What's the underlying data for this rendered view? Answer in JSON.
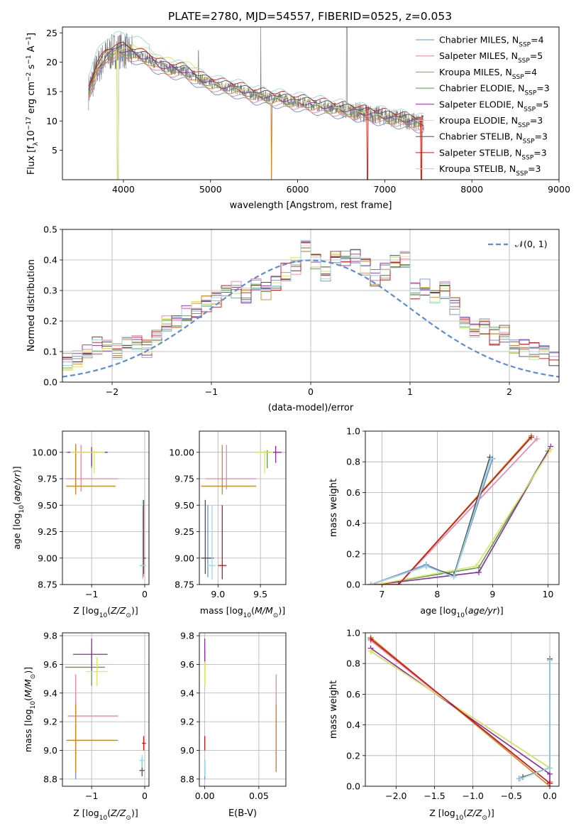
{
  "figure_title": "PLATE=2780, MJD=54557, FIBERID=0525, z=0.053",
  "colors": [
    "#6f8fd6",
    "#ee82a8",
    "#d2861c",
    "#5d9a4f",
    "#8b2aa6",
    "#dbe75c",
    "#4f4f4f",
    "#c41818",
    "#9ad8e6"
  ],
  "chart_data": [
    {
      "id": "spectrum",
      "type": "line",
      "title": "PLATE=2780, MJD=54557, FIBERID=0525, z=0.053",
      "xlabel": "wavelength [Angstrom, rest frame]",
      "ylabel": "Flux [f_λ 10^-17 erg cm^-2 s^-1 A^-1]",
      "xlim": [
        3300,
        9000
      ],
      "ylim": [
        0,
        26
      ],
      "xticks": [
        4000,
        5000,
        6000,
        7000,
        8000,
        9000
      ],
      "yticks": [
        5,
        10,
        15,
        20,
        25
      ],
      "grid": false,
      "legend_position": "upper right",
      "data_color": "#808080",
      "data_profile": {
        "x": [
          3600,
          3700,
          3800,
          3900,
          4000,
          4100,
          4200,
          4300,
          4400,
          4500,
          4700,
          4900,
          5100,
          5300,
          5500,
          5700,
          5900,
          6100,
          6300,
          6500,
          6700,
          6900,
          7100,
          7300,
          7450
        ],
        "y": [
          15,
          19,
          21,
          22,
          22,
          21.5,
          21,
          20.5,
          19.5,
          19,
          18.5,
          17,
          16,
          15.5,
          14.5,
          14,
          13.5,
          13,
          12.5,
          12,
          11.5,
          11,
          10.5,
          10,
          9.5
        ]
      },
      "series": [
        {
          "name": "Chabrier MILES",
          "nssp": "4"
        },
        {
          "name": "Salpeter MILES",
          "nssp": "5"
        },
        {
          "name": "Kroupa MILES",
          "nssp": "4"
        },
        {
          "name": "Chabrier ELODIE",
          "nssp": "3"
        },
        {
          "name": "Salpeter ELODIE",
          "nssp": "5"
        },
        {
          "name": "Kroupa ELODIE",
          "nssp": "3"
        },
        {
          "name": "Chabrier STELIB",
          "nssp": "3"
        },
        {
          "name": "Salpeter STELIB",
          "nssp": "3"
        },
        {
          "name": "Kroupa STELIB",
          "nssp": "3"
        }
      ]
    },
    {
      "id": "residuals",
      "type": "line",
      "xlabel": "(data-model)/error",
      "ylabel": "Normed distribution",
      "xlim": [
        -2.5,
        2.5
      ],
      "ylim": [
        0,
        0.5
      ],
      "xticks": [
        -2,
        -1,
        0,
        1,
        2
      ],
      "yticks": [
        0.0,
        0.1,
        0.2,
        0.3,
        0.4,
        0.5
      ],
      "grid": true,
      "legend_position": "upper right",
      "gaussian_label": "𝒩(0, 1)",
      "gaussian_color": "#5b8bdc",
      "bin_width": 0.1,
      "hist_base": [
        0.07,
        0.08,
        0.1,
        0.12,
        0.11,
        0.1,
        0.12,
        0.13,
        0.11,
        0.15,
        0.19,
        0.2,
        0.23,
        0.24,
        0.26,
        0.27,
        0.29,
        0.3,
        0.28,
        0.32,
        0.3,
        0.33,
        0.36,
        0.38,
        0.44,
        0.4,
        0.36,
        0.41,
        0.4,
        0.42,
        0.38,
        0.34,
        0.36,
        0.39,
        0.4,
        0.3,
        0.31,
        0.27,
        0.3,
        0.25,
        0.2,
        0.17,
        0.18,
        0.15,
        0.16,
        0.12,
        0.11,
        0.1,
        0.09,
        0.08
      ]
    },
    {
      "id": "age-vs-Z",
      "type": "scatter",
      "xlabel": "Z [log10(Z/Z⊙)]",
      "ylabel": "age [log10(age/yr)]",
      "xlim": [
        -1.55,
        0.08
      ],
      "ylim": [
        8.75,
        10.2
      ],
      "xticks": [
        -1,
        0
      ],
      "yticks": [
        8.75,
        9.0,
        9.25,
        9.5,
        9.75,
        10.0
      ],
      "grid": true,
      "points": [
        {
          "x": -1.3,
          "y": 10.0,
          "ex": [
            -1.48,
            -0.7
          ],
          "ey": [
            9.65,
            10.08
          ]
        },
        {
          "x": -1.2,
          "y": 9.75,
          "ex": [
            -1.48,
            -0.5
          ],
          "ey": [
            9.63,
            10.07
          ]
        },
        {
          "x": -1.3,
          "y": 9.68,
          "ex": [
            -1.48,
            -0.55
          ],
          "ey": [
            9.6,
            10.07
          ]
        },
        {
          "x": -1.0,
          "y": 10.0,
          "ex": [
            -1.4,
            -0.7
          ],
          "ey": [
            9.85,
            10.02
          ]
        },
        {
          "x": -1.0,
          "y": 10.0,
          "ex": [
            -1.45,
            -0.7
          ],
          "ey": [
            9.87,
            10.05
          ]
        },
        {
          "x": -0.95,
          "y": 10.0,
          "ex": [
            -1.4,
            -0.75
          ],
          "ey": [
            9.8,
            10.02
          ]
        },
        {
          "x": -0.02,
          "y": 9.0,
          "ex": [
            -0.05,
            0.02
          ],
          "ey": [
            8.85,
            9.55
          ]
        },
        {
          "x": -0.03,
          "y": 8.93,
          "ex": [
            -0.08,
            0.02
          ],
          "ey": [
            8.82,
            9.5
          ]
        },
        {
          "x": -0.04,
          "y": 8.93,
          "ex": [
            -0.1,
            0.02
          ],
          "ey": [
            8.8,
            9.55
          ]
        }
      ]
    },
    {
      "id": "age-vs-mass",
      "type": "scatter",
      "xlabel": "mass [log10(M/M⊙)]",
      "ylabel": "",
      "xlim": [
        8.78,
        9.8
      ],
      "ylim": [
        8.75,
        10.2
      ],
      "xticks": [
        9.0,
        9.5
      ],
      "yticks": [
        8.75,
        9.0,
        9.25,
        9.5,
        9.75,
        10.0
      ],
      "grid": true,
      "points": [
        {
          "x": 8.88,
          "y": 9.0,
          "ex": [
            8.82,
            8.92
          ],
          "ey": [
            8.82,
            9.5
          ]
        },
        {
          "x": 9.1,
          "y": 9.75,
          "ex": [
            8.85,
            9.45
          ],
          "ey": [
            9.65,
            10.07
          ]
        },
        {
          "x": 9.05,
          "y": 9.68,
          "ex": [
            8.8,
            9.45
          ],
          "ey": [
            9.6,
            10.07
          ]
        },
        {
          "x": 9.58,
          "y": 10.0,
          "ex": [
            9.45,
            9.7
          ],
          "ey": [
            9.85,
            10.02
          ]
        },
        {
          "x": 9.68,
          "y": 10.0,
          "ex": [
            9.55,
            9.75
          ],
          "ey": [
            9.9,
            10.06
          ]
        },
        {
          "x": 9.55,
          "y": 10.0,
          "ex": [
            9.45,
            9.65
          ],
          "ey": [
            9.8,
            10.02
          ]
        },
        {
          "x": 8.85,
          "y": 9.0,
          "ex": [
            8.8,
            8.95
          ],
          "ey": [
            8.85,
            9.55
          ]
        },
        {
          "x": 9.05,
          "y": 8.93,
          "ex": [
            9.0,
            9.1
          ],
          "ey": [
            8.8,
            9.5
          ]
        },
        {
          "x": 8.93,
          "y": 8.93,
          "ex": [
            8.87,
            8.97
          ],
          "ey": [
            8.8,
            9.5
          ]
        }
      ]
    },
    {
      "id": "weight-vs-age",
      "type": "line",
      "xlabel": "age [log10(age/yr)]",
      "ylabel": "mass weight",
      "xlim": [
        6.7,
        10.2
      ],
      "ylim": [
        0,
        1.0
      ],
      "xticks": [
        7,
        8,
        9,
        10
      ],
      "yticks": [
        0.0,
        0.2,
        0.4,
        0.6,
        0.8,
        1.0
      ],
      "grid": true,
      "series": [
        {
          "x": [
            6.8,
            7.8,
            8.3,
            9.0
          ],
          "y": [
            0.0,
            0.13,
            0.05,
            0.82
          ]
        },
        {
          "x": [
            6.8,
            7.3,
            9.8
          ],
          "y": [
            0.0,
            0.0,
            0.95
          ]
        },
        {
          "x": [
            6.8,
            7.3,
            9.7
          ],
          "y": [
            0.0,
            0.0,
            0.97
          ]
        },
        {
          "x": [
            6.9,
            8.75,
            10.0
          ],
          "y": [
            0.0,
            0.11,
            0.87
          ]
        },
        {
          "x": [
            6.9,
            8.75,
            10.05
          ],
          "y": [
            0.0,
            0.08,
            0.9
          ]
        },
        {
          "x": [
            6.9,
            8.7,
            10.05
          ],
          "y": [
            0.0,
            0.12,
            0.88
          ]
        },
        {
          "x": [
            6.8,
            7.8,
            8.3,
            8.95
          ],
          "y": [
            0.0,
            0.12,
            0.06,
            0.83
          ]
        },
        {
          "x": [
            6.8,
            7.3,
            9.7
          ],
          "y": [
            0.0,
            0.0,
            0.96
          ]
        },
        {
          "x": [
            6.8,
            7.8,
            8.3,
            8.97
          ],
          "y": [
            0.0,
            0.12,
            0.05,
            0.82
          ]
        }
      ]
    },
    {
      "id": "mass-vs-Z",
      "type": "scatter",
      "xlabel": "Z [log10(Z/Z⊙)]",
      "ylabel": "mass [log10(M/M⊙)]",
      "xlim": [
        -1.55,
        0.08
      ],
      "ylim": [
        8.75,
        9.82
      ],
      "xticks": [
        -1,
        0
      ],
      "yticks": [
        8.8,
        9.0,
        9.2,
        9.4,
        9.6,
        9.8
      ],
      "grid": true,
      "points": [
        {
          "x": -1.3,
          "y": 9.07,
          "ex": [
            -1.48,
            -0.5
          ],
          "ey": [
            8.8,
            9.35
          ]
        },
        {
          "x": -1.3,
          "y": 9.24,
          "ex": [
            -1.45,
            -0.5
          ],
          "ey": [
            8.85,
            9.53
          ]
        },
        {
          "x": -1.3,
          "y": 9.07,
          "ex": [
            -1.45,
            -0.55
          ],
          "ey": [
            8.85,
            9.32
          ]
        },
        {
          "x": -1.0,
          "y": 9.58,
          "ex": [
            -1.5,
            -0.75
          ],
          "ey": [
            9.45,
            9.7
          ]
        },
        {
          "x": -1.0,
          "y": 9.67,
          "ex": [
            -1.35,
            -0.7
          ],
          "ey": [
            9.55,
            9.78
          ]
        },
        {
          "x": -0.9,
          "y": 9.55,
          "ex": [
            -1.1,
            -0.7
          ],
          "ey": [
            9.45,
            9.65
          ]
        },
        {
          "x": -0.05,
          "y": 8.86,
          "ex": [
            -0.1,
            0.0
          ],
          "ey": [
            8.82,
            8.95
          ]
        },
        {
          "x": -0.02,
          "y": 9.05,
          "ex": [
            -0.05,
            0.02
          ],
          "ey": [
            9.0,
            9.1
          ]
        },
        {
          "x": -0.05,
          "y": 8.93,
          "ex": [
            -0.1,
            0.0
          ],
          "ey": [
            8.88,
            8.97
          ]
        }
      ]
    },
    {
      "id": "mass-vs-EBV",
      "type": "scatter",
      "xlabel": "E(B-V)",
      "ylabel": "",
      "xlim": [
        -0.005,
        0.075
      ],
      "ylim": [
        8.75,
        9.82
      ],
      "xticks": [
        0.0,
        0.05
      ],
      "xticklabels": [
        "0.00",
        "0.05"
      ],
      "yticks": [
        8.8,
        9.0,
        9.2,
        9.4,
        9.6,
        9.8
      ],
      "grid": true,
      "points": [
        {
          "x": 0.0,
          "y": 8.86,
          "ey": [
            8.8,
            8.93
          ]
        },
        {
          "x": 0.066,
          "y": 9.24,
          "ey": [
            8.85,
            9.53
          ]
        },
        {
          "x": 0.066,
          "y": 9.07,
          "ey": [
            8.85,
            9.32
          ]
        },
        {
          "x": 0.0,
          "y": 9.58,
          "ey": [
            9.45,
            9.7
          ]
        },
        {
          "x": 0.0,
          "y": 9.67,
          "ey": [
            9.55,
            9.78
          ]
        },
        {
          "x": 0.0,
          "y": 9.55,
          "ey": [
            9.45,
            9.62
          ]
        },
        {
          "x": 0.0,
          "y": 8.86,
          "ey": [
            8.82,
            8.93
          ]
        },
        {
          "x": 0.0,
          "y": 9.05,
          "ey": [
            9.0,
            9.1
          ]
        },
        {
          "x": 0.0,
          "y": 8.88,
          "ey": [
            8.82,
            8.93
          ]
        }
      ]
    },
    {
      "id": "weight-vs-Z",
      "type": "line",
      "xlabel": "Z [log10(Z/Z⊙)]",
      "ylabel": "mass weight",
      "xlim": [
        -2.4,
        0.12
      ],
      "ylim": [
        0,
        1.0
      ],
      "xticks": [
        -2.0,
        -1.5,
        -1.0,
        -0.5,
        0.0
      ],
      "xticklabels": [
        "−2.0",
        "−1.5",
        "−1.0",
        "−0.5",
        "0.0"
      ],
      "yticks": [
        0.0,
        0.2,
        0.4,
        0.6,
        0.8,
        1.0
      ],
      "grid": true,
      "series": [
        {
          "x": [
            -0.4,
            0.0,
            0.0
          ],
          "y": [
            0.05,
            0.12,
            0.82
          ]
        },
        {
          "x": [
            -2.33,
            0.0,
            0.0
          ],
          "y": [
            0.95,
            0.02,
            0.03
          ]
        },
        {
          "x": [
            -2.33,
            0.0
          ],
          "y": [
            0.97,
            0.0
          ]
        },
        {
          "x": [
            -2.33,
            0.0
          ],
          "y": [
            0.88,
            0.12
          ]
        },
        {
          "x": [
            -2.33,
            0.0,
            0.0
          ],
          "y": [
            0.9,
            0.08,
            0.02
          ]
        },
        {
          "x": [
            -2.33,
            0.0
          ],
          "y": [
            0.88,
            0.12
          ]
        },
        {
          "x": [
            -0.35,
            0.0,
            0.0
          ],
          "y": [
            0.06,
            0.12,
            0.83
          ]
        },
        {
          "x": [
            -2.33,
            0.0
          ],
          "y": [
            0.96,
            0.02
          ]
        },
        {
          "x": [
            -0.38,
            0.0,
            0.0
          ],
          "y": [
            0.05,
            0.12,
            0.82
          ]
        }
      ]
    }
  ]
}
